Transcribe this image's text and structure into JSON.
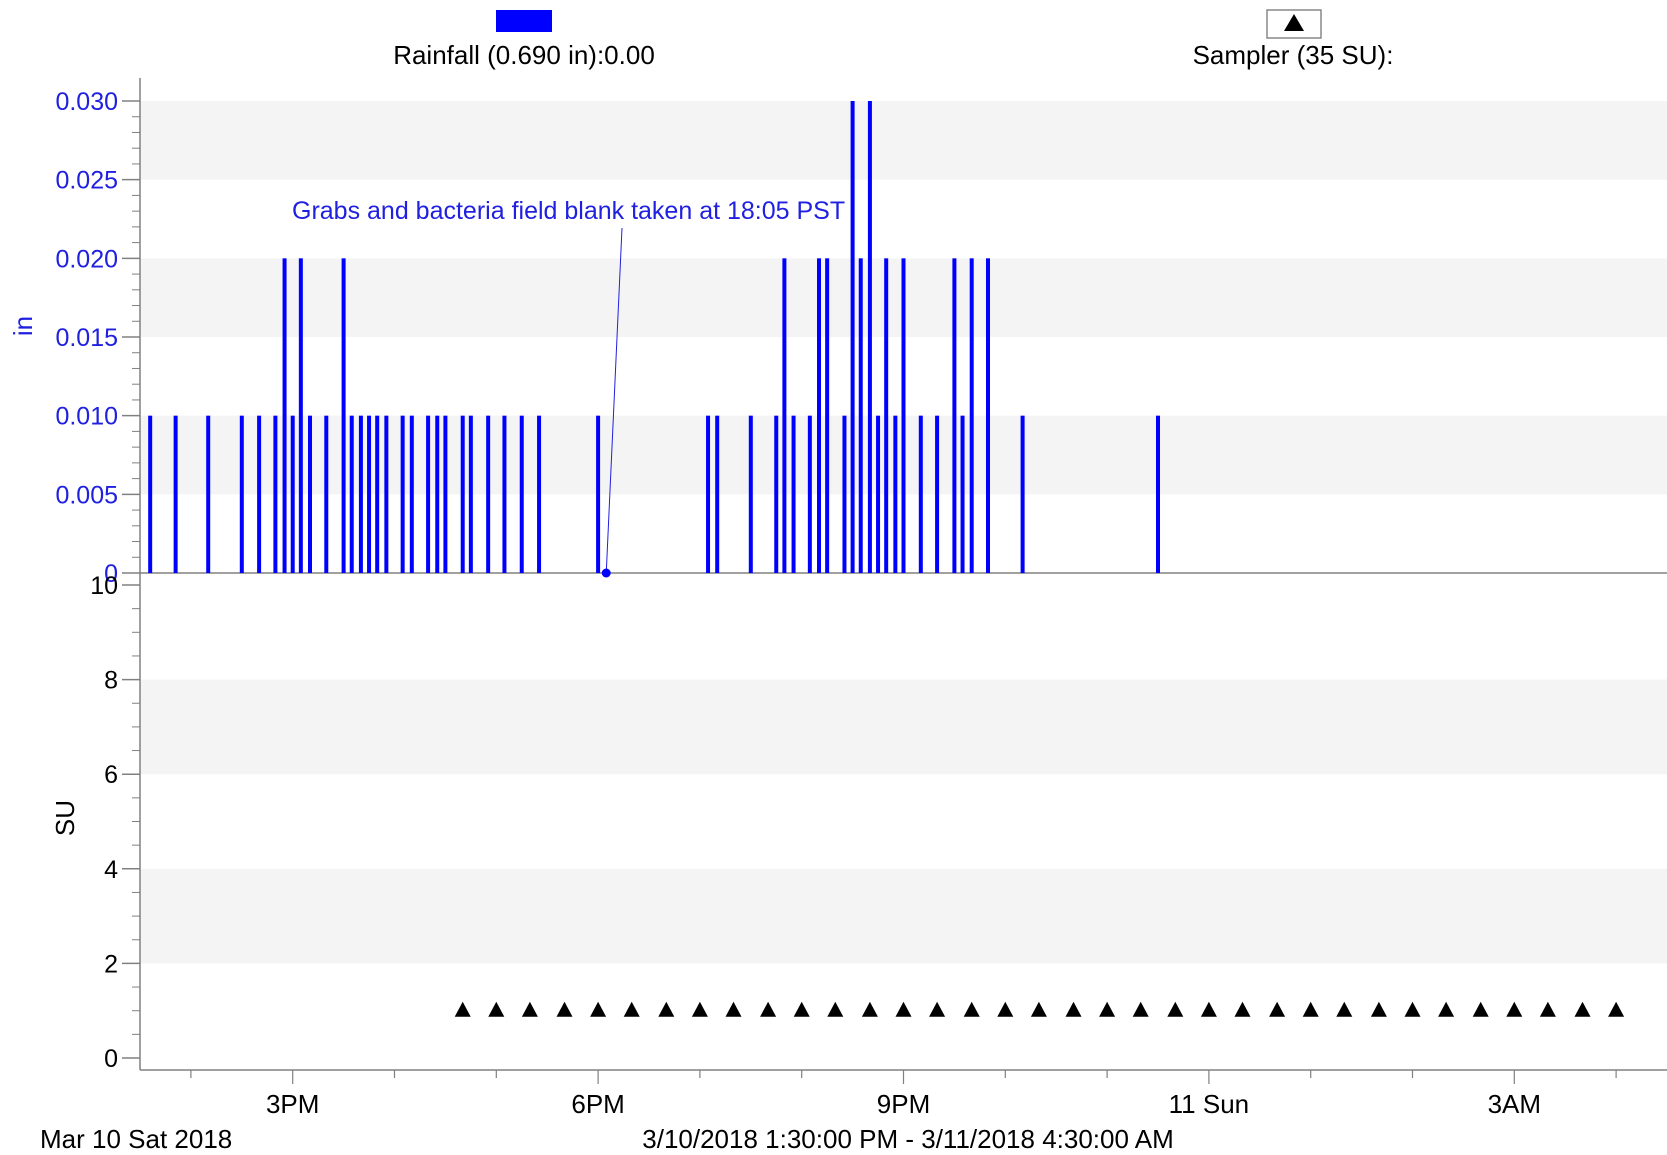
{
  "colors": {
    "rain": "#0000ff",
    "axis_text_rain": "#2020e0",
    "axis_text_su": "#000000",
    "band": "#f4f4f4",
    "axis": "#808080",
    "marker": "#000000"
  },
  "legend": {
    "rain_label": "Rainfall (0.690 in):0.00",
    "sampler_label": "Sampler (35 SU):",
    "sampler_icon": "triangle-icon"
  },
  "annotation": {
    "text": "Grabs and bacteria field blank taken at 18:05 PST",
    "time_hours": 18.08
  },
  "footer": {
    "start_label": "Mar 10 Sat 2018",
    "range_label": "3/10/2018 1:30:00 PM - 3/11/2018 4:30:00 AM"
  },
  "chart_data": [
    {
      "type": "bar",
      "title": "",
      "ylabel": "in",
      "series": [
        {
          "name": "Rainfall (0.690 in)",
          "x_hours": [
            13.6,
            13.85,
            14.17,
            14.5,
            14.67,
            14.83,
            14.92,
            15.0,
            15.08,
            15.17,
            15.33,
            15.5,
            15.58,
            15.67,
            15.75,
            15.83,
            15.92,
            16.08,
            16.17,
            16.33,
            16.42,
            16.5,
            16.67,
            16.75,
            16.92,
            17.08,
            17.25,
            17.42,
            18.0,
            19.08,
            19.17,
            19.5,
            19.75,
            19.83,
            19.92,
            20.08,
            20.17,
            20.25,
            20.42,
            20.5,
            20.58,
            20.67,
            20.75,
            20.83,
            20.92,
            21.0,
            21.17,
            21.33,
            21.5,
            21.58,
            21.67,
            21.83,
            22.17,
            23.5
          ],
          "values": [
            0.01,
            0.01,
            0.01,
            0.01,
            0.01,
            0.01,
            0.02,
            0.01,
            0.02,
            0.01,
            0.01,
            0.02,
            0.01,
            0.01,
            0.01,
            0.01,
            0.01,
            0.01,
            0.01,
            0.01,
            0.01,
            0.01,
            0.01,
            0.01,
            0.01,
            0.01,
            0.01,
            0.01,
            0.01,
            0.01,
            0.01,
            0.01,
            0.01,
            0.02,
            0.01,
            0.01,
            0.02,
            0.02,
            0.01,
            0.03,
            0.02,
            0.03,
            0.01,
            0.02,
            0.01,
            0.02,
            0.01,
            0.01,
            0.02,
            0.01,
            0.02,
            0.02,
            0.01,
            0.01
          ]
        }
      ],
      "ylim": [
        0,
        0.03
      ],
      "y_ticks": [
        "0",
        "0.005",
        "0.010",
        "0.015",
        "0.020",
        "0.025",
        "0.030"
      ]
    },
    {
      "type": "scatter",
      "title": "",
      "ylabel": "SU",
      "series": [
        {
          "name": "Sampler (35 SU)",
          "x_hours": [
            16.67,
            17.0,
            17.33,
            17.67,
            18.0,
            18.33,
            18.67,
            19.0,
            19.33,
            19.67,
            20.0,
            20.33,
            20.67,
            21.0,
            21.33,
            21.67,
            22.0,
            22.33,
            22.67,
            23.0,
            23.33,
            23.67,
            24.0,
            24.33,
            24.67,
            25.0,
            25.33,
            25.67,
            26.0,
            26.33,
            26.67,
            27.0,
            27.33,
            27.67,
            28.0
          ],
          "values": [
            1,
            1,
            1,
            1,
            1,
            1,
            1,
            1,
            1,
            1,
            1,
            1,
            1,
            1,
            1,
            1,
            1,
            1,
            1,
            1,
            1,
            1,
            1,
            1,
            1,
            1,
            1,
            1,
            1,
            1,
            1,
            1,
            1,
            1,
            1
          ]
        }
      ],
      "ylim": [
        0,
        10
      ],
      "y_ticks": [
        "0",
        "2",
        "4",
        "6",
        "8",
        "10"
      ]
    }
  ],
  "x_axis": {
    "range_hours": [
      13.5,
      28.5
    ],
    "ticks": [
      {
        "label": "3PM",
        "hour": 15
      },
      {
        "label": "6PM",
        "hour": 18
      },
      {
        "label": "9PM",
        "hour": 21
      },
      {
        "label": "11 Sun",
        "hour": 24
      },
      {
        "label": "3AM",
        "hour": 27
      }
    ]
  }
}
